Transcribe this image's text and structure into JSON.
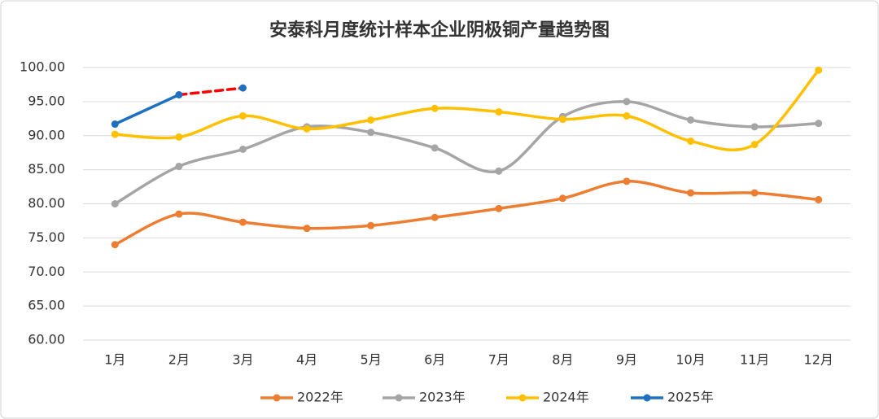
{
  "chart_data": {
    "type": "line",
    "title": "安泰科月度统计样本企业阴极铜产量趋势图",
    "categories": [
      "1月",
      "2月",
      "3月",
      "4月",
      "5月",
      "6月",
      "7月",
      "8月",
      "9月",
      "10月",
      "11月",
      "12月"
    ],
    "series": [
      {
        "name": "2022年",
        "color": "#ed7d31",
        "values": [
          74.0,
          78.5,
          77.3,
          76.4,
          76.8,
          78.0,
          79.3,
          80.8,
          83.3,
          81.6,
          81.6,
          80.6
        ]
      },
      {
        "name": "2023年",
        "color": "#a5a5a5",
        "values": [
          80.0,
          85.5,
          88.0,
          91.3,
          90.5,
          88.2,
          84.8,
          92.8,
          95.0,
          92.3,
          91.3,
          91.8
        ]
      },
      {
        "name": "2024年",
        "color": "#ffc000",
        "values": [
          90.2,
          89.8,
          92.9,
          91.0,
          92.3,
          94.0,
          93.5,
          92.4,
          92.9,
          89.2,
          88.7,
          99.6
        ]
      },
      {
        "name": "2025年",
        "color": "#1f70c1",
        "values": [
          91.7,
          96.0,
          97.0,
          null,
          null,
          null,
          null,
          null,
          null,
          null,
          null,
          null
        ],
        "dash_start_index": 1,
        "dash_color": "#ff0000"
      }
    ],
    "ylim": [
      60,
      100
    ],
    "yticks": [
      {
        "value": 60,
        "label": "60.00"
      },
      {
        "value": 65,
        "label": "65.00"
      },
      {
        "value": 70,
        "label": "70.00"
      },
      {
        "value": 75,
        "label": "75.00"
      },
      {
        "value": 80,
        "label": "80.00"
      },
      {
        "value": 85,
        "label": "85.00"
      },
      {
        "value": 90,
        "label": "90.00"
      },
      {
        "value": 95,
        "label": "95.00"
      },
      {
        "value": 100,
        "label": "100.00"
      }
    ],
    "grid": true,
    "smooth": true,
    "legend": "bottom"
  }
}
